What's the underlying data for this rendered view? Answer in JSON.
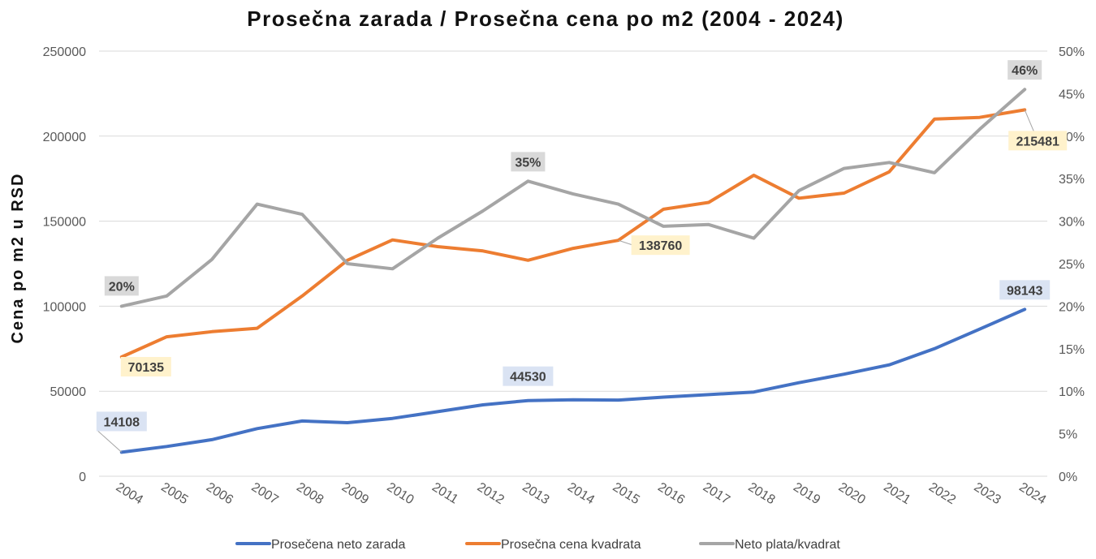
{
  "chart_data": {
    "type": "line",
    "title": "Prosečna zarada / Prosečna cena po m2 (2004 - 2024)",
    "ylabel": "Cena po m2 u RSD",
    "ylim": [
      0,
      250000
    ],
    "y_ticks": [
      "0",
      "50000",
      "100000",
      "150000",
      "200000",
      "250000"
    ],
    "y2lim": [
      0,
      50
    ],
    "y2_ticks": [
      "0%",
      "5%",
      "10%",
      "15%",
      "20%",
      "25%",
      "30%",
      "35%",
      "40%",
      "45%",
      "50%"
    ],
    "categories": [
      "2004",
      "2005",
      "2006",
      "2007",
      "2008",
      "2009",
      "2010",
      "2011",
      "2012",
      "2013",
      "2014",
      "2015",
      "2016",
      "2017",
      "2018",
      "2019",
      "2020",
      "2021",
      "2022",
      "2023",
      "2024"
    ],
    "series": [
      {
        "name": "Prosečena neto zarada",
        "axis": "left",
        "color": "#4472C4",
        "values": [
          14108,
          17500,
          21500,
          28000,
          32500,
          31500,
          34000,
          38000,
          42000,
          44530,
          45000,
          44800,
          46500,
          48000,
          49500,
          55000,
          60000,
          65500,
          75000,
          86500,
          98143
        ],
        "labels": [
          {
            "index": 0,
            "text": "14108"
          },
          {
            "index": 9,
            "text": "44530"
          },
          {
            "index": 20,
            "text": "98143"
          }
        ]
      },
      {
        "name": "Prosečna cena kvadrata",
        "axis": "left",
        "color": "#ED7D31",
        "values": [
          70135,
          82000,
          85000,
          87000,
          106000,
          127000,
          139000,
          135000,
          132500,
          127000,
          134000,
          138760,
          157000,
          161000,
          177000,
          163500,
          166500,
          179000,
          210000,
          211000,
          215481
        ],
        "labels": [
          {
            "index": 0,
            "text": "70135"
          },
          {
            "index": 11,
            "text": "138760"
          },
          {
            "index": 20,
            "text": "215481"
          }
        ]
      },
      {
        "name": "Neto plata/kvadrat",
        "axis": "right",
        "color": "#A5A5A5",
        "values": [
          20,
          21.2,
          25.5,
          32,
          30.8,
          25,
          24.4,
          28,
          31.2,
          34.7,
          33.2,
          32,
          29.4,
          29.6,
          28,
          33.6,
          36.2,
          36.9,
          35.7,
          40.8,
          45.5
        ],
        "labels": [
          {
            "index": 0,
            "text": "20%"
          },
          {
            "index": 9,
            "text": "35%"
          },
          {
            "index": 20,
            "text": "46%"
          }
        ]
      }
    ],
    "legend": "bottom"
  }
}
